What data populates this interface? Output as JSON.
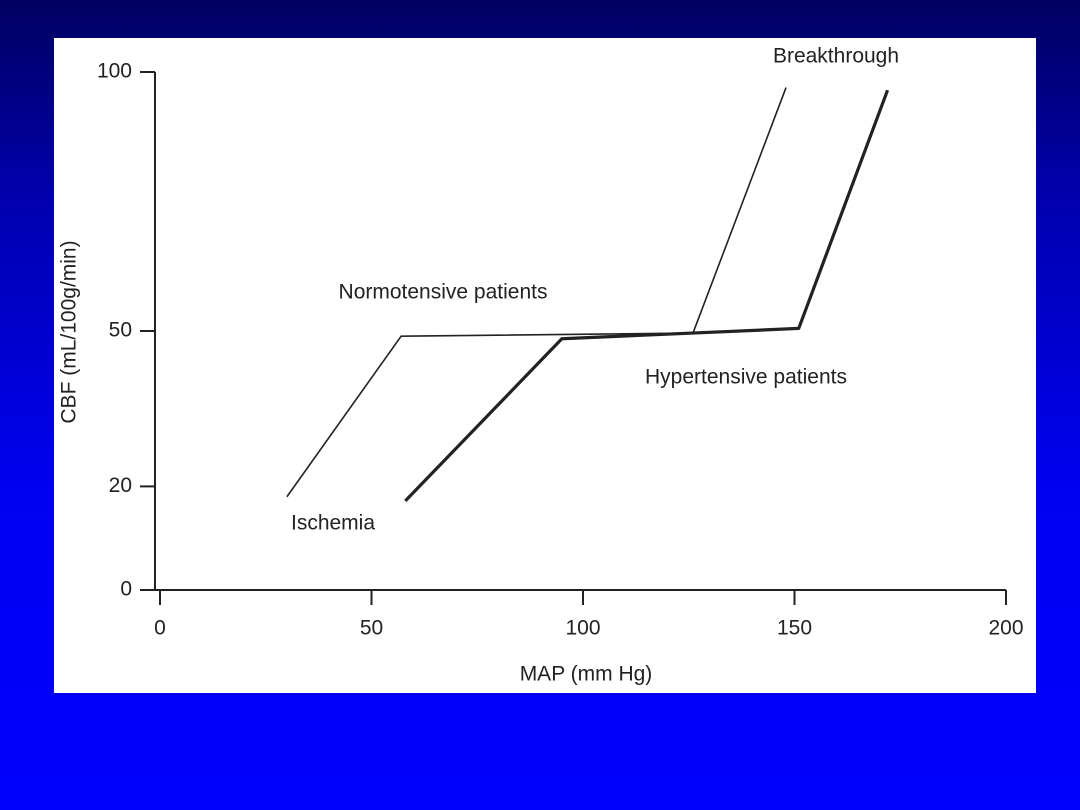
{
  "chart_data": {
    "type": "line",
    "x_label": "MAP (mm Hg)",
    "y_label": "CBF (mL/100g/min)",
    "xlim": [
      0,
      200
    ],
    "xticks": [
      0,
      50,
      100,
      150,
      200
    ],
    "ylim": [
      0,
      100
    ],
    "yticks": [
      0,
      20,
      50,
      100
    ],
    "annotations": [
      "Breakthrough",
      "Ischemia"
    ],
    "series": [
      {
        "name": "Normotensive patients",
        "color": "#222222",
        "x": [
          30,
          57,
          126,
          148
        ],
        "values": [
          18,
          49,
          49.6,
          97
        ]
      },
      {
        "name": "Hypertensive patients",
        "color": "#222222",
        "x": [
          58,
          95,
          151,
          172
        ],
        "values": [
          17.2,
          48.5,
          50.5,
          96.5
        ]
      }
    ]
  }
}
